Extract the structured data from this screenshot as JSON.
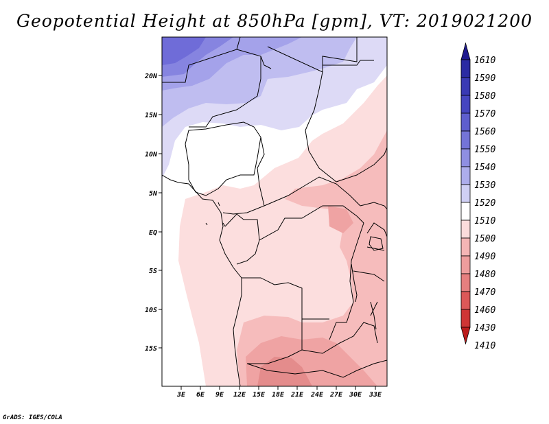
{
  "title": "Geopotential Height at 850hPa [gpm], VT: 2019021200",
  "credit": "GrADS: IGES/COLA",
  "map": {
    "lat_labels": [
      "20N",
      "15N",
      "10N",
      "5N",
      "EQ",
      "5S",
      "10S",
      "15S"
    ],
    "lon_labels": [
      "3E",
      "6E",
      "9E",
      "12E",
      "15E",
      "18E",
      "21E",
      "24E",
      "27E",
      "30E",
      "33E"
    ]
  },
  "chart_data": {
    "type": "heatmap",
    "title": "Geopotential Height at 850hPa [gpm], VT: 2019021200",
    "variable": "Geopotential Height at 850hPa",
    "units": "gpm",
    "valid_time": "2019021200",
    "x_ticks": [
      "3E",
      "6E",
      "9E",
      "12E",
      "15E",
      "18E",
      "21E",
      "24E",
      "27E",
      "30E",
      "33E"
    ],
    "y_ticks": [
      "20N",
      "15N",
      "10N",
      "5N",
      "EQ",
      "5S",
      "10S",
      "15S"
    ],
    "colorbar": {
      "levels": [
        1610,
        1590,
        1580,
        1570,
        1560,
        1550,
        1540,
        1530,
        1520,
        1510,
        1500,
        1490,
        1480,
        1470,
        1460,
        1430,
        1410
      ],
      "colors": [
        "#1f1a8f",
        "#2b2ba3",
        "#3a3ab4",
        "#4646c0",
        "#5e5ece",
        "#7474d8",
        "#8f8fe2",
        "#adadec",
        "#cfcff4",
        "#ffffff",
        "#fbdcdc",
        "#f4b5b5",
        "#ee9d9d",
        "#e67f7f",
        "#dc5858",
        "#cf3535",
        "#bb1b1b"
      ]
    }
  }
}
